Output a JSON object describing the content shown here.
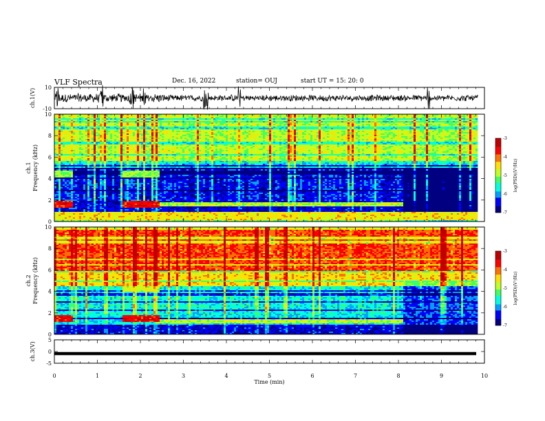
{
  "header": {
    "title": "VLF Spectra",
    "date": "Dec. 16, 2022",
    "station": "station= OUJ",
    "start_ut": "start  UT =   15: 20: 0"
  },
  "chart_data": [
    {
      "type": "line",
      "panel": "ch1-waveform",
      "ylabel": "ch.1(V)",
      "ylim": [
        -10,
        10
      ],
      "yticks": [
        "10",
        "-10"
      ],
      "xlim": [
        0,
        10
      ],
      "series": [
        {
          "values_note_none": "",
          "baseline": 0
        }
      ],
      "bursts_min": [
        0.08,
        1.1,
        1.78,
        1.83,
        2.1,
        3.5,
        3.55,
        4.3,
        8.7
      ]
    },
    {
      "type": "heatmap",
      "panel": "ch1-spectrogram",
      "ylabel": "Frequency (kHz)",
      "channel_label": "ch.1",
      "ylim": [
        0,
        10
      ],
      "yticks": [
        "0",
        "2",
        "4",
        "6",
        "8",
        "10"
      ],
      "xlim": [
        0,
        9.8
      ],
      "bands": [
        {
          "f_lo": 1.4,
          "f_hi": 2.0,
          "t_ranges": [
            [
              0,
              0.4
            ],
            [
              1.55,
              2.4
            ]
          ],
          "level": -3.5
        },
        {
          "f_lo": 1.5,
          "f_hi": 1.9,
          "t_ranges": [
            [
              2.4,
              8.1
            ]
          ],
          "level": -4.8
        },
        {
          "f_lo": 4.2,
          "f_hi": 4.8,
          "t_ranges": [
            [
              0,
              0.4
            ],
            [
              1.55,
              2.4
            ]
          ],
          "level": -5.0
        },
        {
          "f_lo": 0.2,
          "f_hi": 0.9,
          "t_ranges": [
            [
              0,
              9.8
            ]
          ],
          "level": -4.5
        }
      ],
      "colorbar": {
        "label": "log(PSD)(V²/Hz)",
        "ticks": [
          "-3",
          "-4",
          "-5",
          "-6",
          "-7"
        ],
        "range": [
          -7,
          -3
        ]
      }
    },
    {
      "type": "heatmap",
      "panel": "ch2-spectrogram",
      "ylabel": "Frequency (kHz)",
      "channel_label": "ch.2",
      "ylim": [
        0,
        10
      ],
      "yticks": [
        "0",
        "2",
        "4",
        "6",
        "8",
        "10"
      ],
      "xlim": [
        0,
        9.8
      ],
      "bands": [
        {
          "f_lo": 1.2,
          "f_hi": 1.8,
          "t_ranges": [
            [
              0,
              0.4
            ],
            [
              1.55,
              2.4
            ]
          ],
          "level": -3.5
        },
        {
          "f_lo": 1.1,
          "f_hi": 1.5,
          "t_ranges": [
            [
              2.4,
              8.1
            ]
          ],
          "level": -4.8
        },
        {
          "f_lo": 4.0,
          "f_hi": 4.6,
          "t_ranges": [
            [
              1.55,
              2.4
            ]
          ],
          "level": -4.8
        }
      ],
      "colorbar": {
        "label": "log(PSD)(V²/Hz)",
        "ticks": [
          "-3",
          "-4",
          "-5",
          "-6",
          "-7"
        ],
        "range": [
          -7,
          -3
        ]
      }
    },
    {
      "type": "line",
      "panel": "ch3-waveform",
      "ylabel": "ch.3(V)",
      "ylim": [
        -5,
        5
      ],
      "yticks": [
        "5",
        "0",
        "-5"
      ],
      "xlim": [
        0,
        10
      ],
      "series": [
        {
          "constant_value": -0.9
        }
      ]
    }
  ],
  "xaxis": {
    "label": "Time (min)",
    "ticks": [
      "0",
      "1",
      "2",
      "3",
      "4",
      "5",
      "6",
      "7",
      "8",
      "9",
      "10"
    ],
    "range": [
      0,
      10
    ]
  },
  "colors": {
    "colormap": [
      "#000080",
      "#0000ff",
      "#00a0ff",
      "#00ffe0",
      "#40ff60",
      "#c0ff20",
      "#ffe000",
      "#ff7000",
      "#ff0000",
      "#c00000"
    ],
    "waveform": "#000000"
  }
}
